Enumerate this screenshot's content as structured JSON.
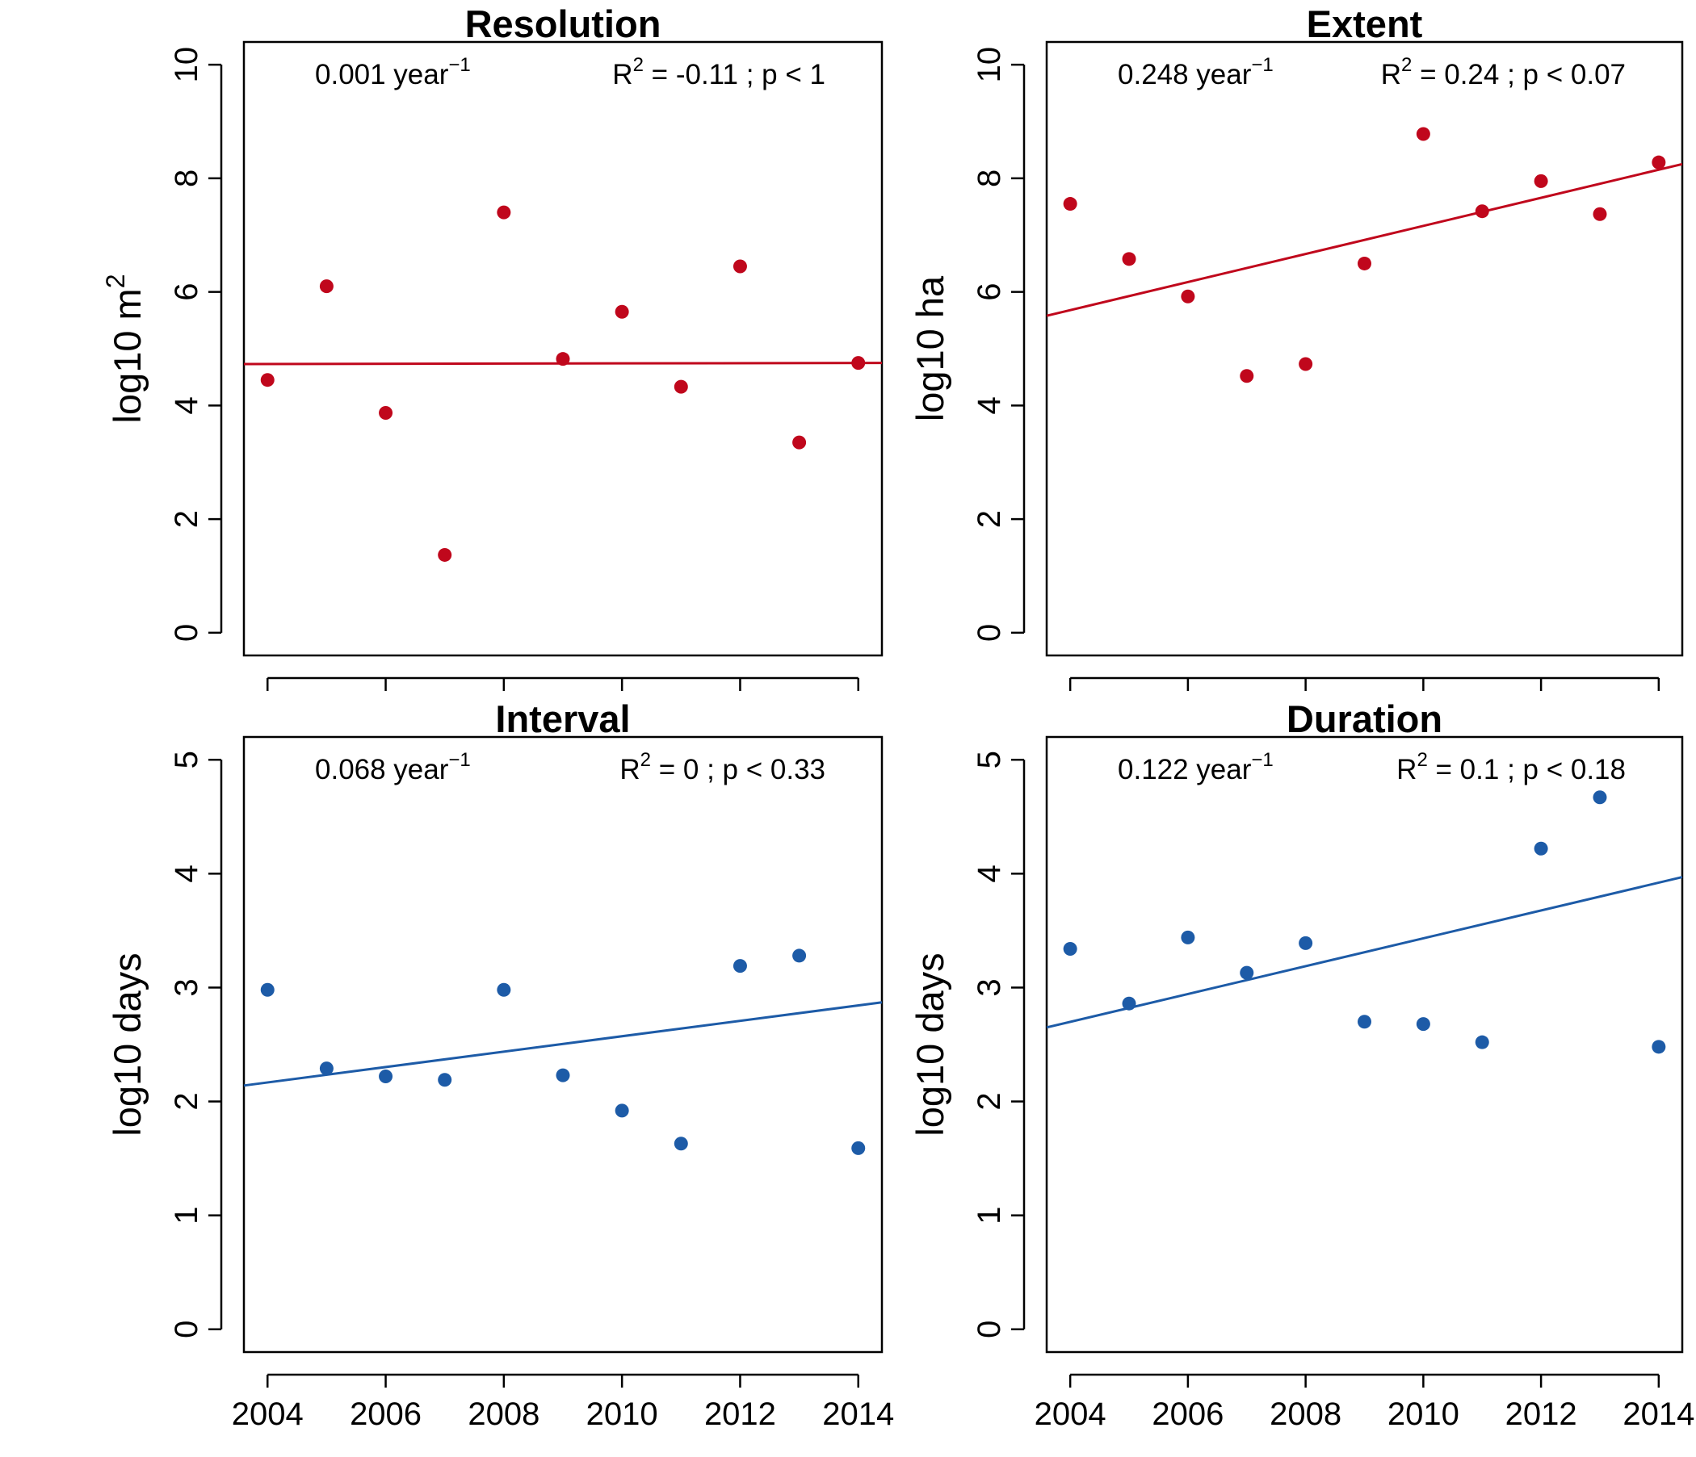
{
  "chart_data": [
    {
      "type": "scatter",
      "title": "Resolution",
      "ylabel": "log10 m",
      "ylabel_sup": "2",
      "xlim": [
        2003.6,
        2014.4
      ],
      "ylim": [
        -0.4,
        10.4
      ],
      "xticks": [
        2004,
        2006,
        2008,
        2010,
        2012,
        2014
      ],
      "yticks": [
        0,
        2,
        4,
        6,
        8,
        10
      ],
      "show_x_tick_labels": false,
      "color": "#c0071c",
      "x": [
        2004,
        2005,
        2006,
        2007,
        2008,
        2009,
        2010,
        2011,
        2012,
        2013,
        2014
      ],
      "y": [
        4.45,
        6.1,
        3.87,
        1.37,
        7.4,
        4.82,
        5.65,
        4.33,
        6.45,
        3.35,
        4.75
      ],
      "trend": {
        "x": [
          2003.6,
          2014.4
        ],
        "y": [
          4.73,
          4.75
        ]
      },
      "rate_text": "0.001 year",
      "rate_sup": "−1",
      "stats_r": "R",
      "stats_sup": "2",
      "stats_rest": " = -0.11 ; p < 1"
    },
    {
      "type": "scatter",
      "title": "Extent",
      "ylabel": "log10 ha",
      "ylabel_sup": "",
      "xlim": [
        2003.6,
        2014.4
      ],
      "ylim": [
        -0.4,
        10.4
      ],
      "xticks": [
        2004,
        2006,
        2008,
        2010,
        2012,
        2014
      ],
      "yticks": [
        0,
        2,
        4,
        6,
        8,
        10
      ],
      "show_x_tick_labels": false,
      "color": "#c0071c",
      "x": [
        2004,
        2005,
        2006,
        2007,
        2008,
        2009,
        2010,
        2011,
        2012,
        2013,
        2014
      ],
      "y": [
        7.55,
        6.58,
        5.92,
        4.52,
        4.73,
        6.5,
        8.78,
        7.42,
        7.95,
        7.37,
        8.28
      ],
      "trend": {
        "x": [
          2003.6,
          2014.4
        ],
        "y": [
          5.58,
          8.25
        ]
      },
      "rate_text": "0.248 year",
      "rate_sup": "−1",
      "stats_r": "R",
      "stats_sup": "2",
      "stats_rest": " = 0.24 ; p < 0.07"
    },
    {
      "type": "scatter",
      "title": "Interval",
      "ylabel": "log10 days",
      "ylabel_sup": "",
      "xlim": [
        2003.6,
        2014.4
      ],
      "ylim": [
        -0.2,
        5.2
      ],
      "xticks": [
        2004,
        2006,
        2008,
        2010,
        2012,
        2014
      ],
      "yticks": [
        0,
        1,
        2,
        3,
        4,
        5
      ],
      "show_x_tick_labels": true,
      "color": "#1d5ba7",
      "x": [
        2004,
        2005,
        2006,
        2007,
        2008,
        2009,
        2010,
        2011,
        2012,
        2013,
        2014
      ],
      "y": [
        2.98,
        2.29,
        2.22,
        2.19,
        2.98,
        2.23,
        1.92,
        1.63,
        3.19,
        3.28,
        1.59
      ],
      "trend": {
        "x": [
          2003.6,
          2014.4
        ],
        "y": [
          2.14,
          2.87
        ]
      },
      "rate_text": "0.068 year",
      "rate_sup": "−1",
      "stats_r": "R",
      "stats_sup": "2",
      "stats_rest": " = 0 ; p < 0.33"
    },
    {
      "type": "scatter",
      "title": "Duration",
      "ylabel": "log10 days",
      "ylabel_sup": "",
      "xlim": [
        2003.6,
        2014.4
      ],
      "ylim": [
        -0.2,
        5.2
      ],
      "xticks": [
        2004,
        2006,
        2008,
        2010,
        2012,
        2014
      ],
      "yticks": [
        0,
        1,
        2,
        3,
        4,
        5
      ],
      "show_x_tick_labels": true,
      "color": "#1d5ba7",
      "x": [
        2004,
        2005,
        2006,
        2007,
        2008,
        2009,
        2010,
        2011,
        2012,
        2013,
        2014
      ],
      "y": [
        3.34,
        2.86,
        3.44,
        3.13,
        3.39,
        2.7,
        2.68,
        2.52,
        4.22,
        4.67,
        2.48
      ],
      "trend": {
        "x": [
          2003.6,
          2014.4
        ],
        "y": [
          2.65,
          3.97
        ]
      },
      "rate_text": "0.122 year",
      "rate_sup": "−1",
      "stats_r": "R",
      "stats_sup": "2",
      "stats_rest": " = 0.1 ; p < 0.18"
    }
  ]
}
